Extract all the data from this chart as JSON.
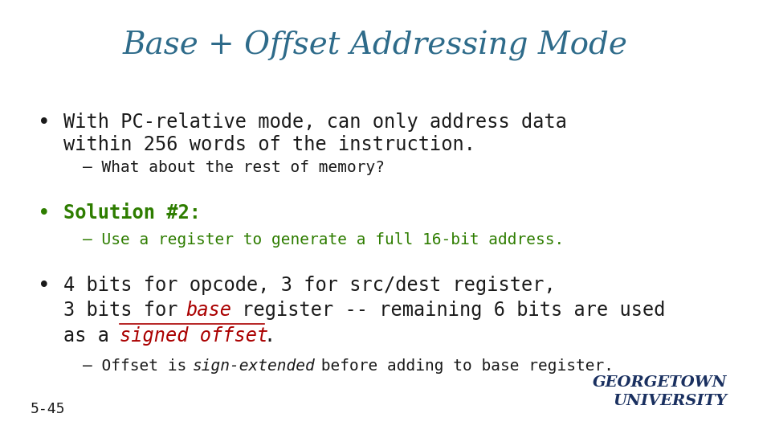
{
  "title": "Base + Offset Addressing Mode",
  "title_color": "#2E6B8A",
  "title_fontsize": 28,
  "bg_color": "#FFFFFF",
  "slide_number": "5-45",
  "bullet1_main": "With PC-relative mode, can only address data\nwithin 256 words of the instruction.",
  "bullet1_sub": "What about the rest of memory?",
  "bullet2_main_green": "Solution #2:",
  "bullet2_sub_green": "Use a register to generate a full 16-bit address.",
  "bullet3_line1": "4 bits for opcode, 3 for src/dest register,",
  "bullet3_line2_pre": "3 bits for ",
  "bullet3_line2_red": "base",
  "bullet3_line2_post": " register -- remaining 6 bits are used",
  "bullet3_line3_pre": "as a ",
  "bullet3_line3_red_italic_underline": "signed offset",
  "bullet3_line3_post": ".",
  "bullet3_sub_pre": "Offset is ",
  "bullet3_sub_italic": "sign-extended",
  "bullet3_sub_post": " before adding to base register.",
  "black": "#1A1A1A",
  "green": "#2E7D00",
  "red": "#AA0000",
  "dark_blue": "#1A3060",
  "body_fontsize": 17,
  "sub_fontsize": 14
}
